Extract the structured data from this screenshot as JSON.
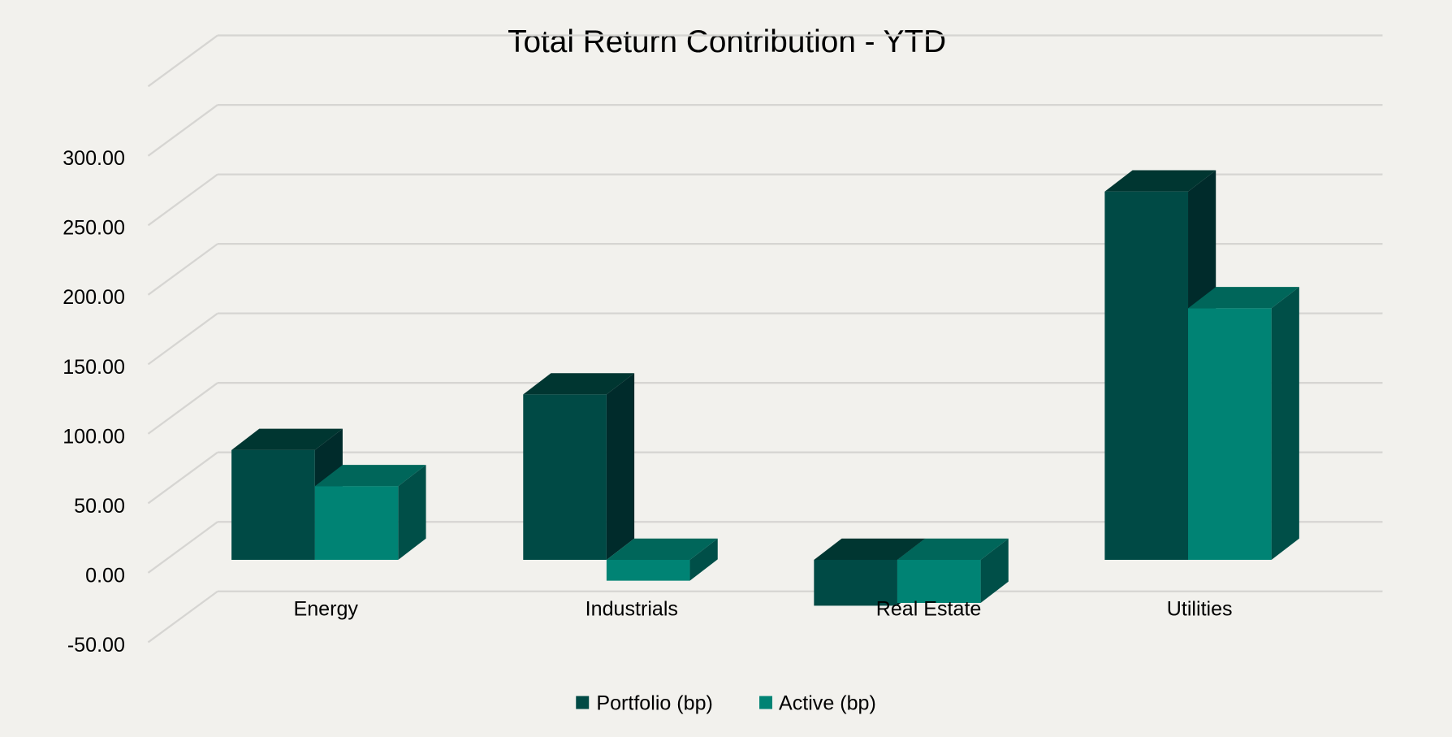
{
  "chart_data": {
    "type": "bar",
    "style": "3d-clustered-column",
    "title": "Total Return Contribution - YTD",
    "categories": [
      "Energy",
      "Industrials",
      "Real Estate",
      "Utilities"
    ],
    "series": [
      {
        "name": "Portfolio (bp)",
        "color": "#004a45",
        "values": [
          79,
          119,
          -33,
          265
        ]
      },
      {
        "name": "Active (bp)",
        "color": "#008374",
        "values": [
          53,
          -15,
          -31,
          181
        ]
      }
    ],
    "y_ticks": [
      "-50.00",
      "0.00",
      "50.00",
      "100.00",
      "150.00",
      "200.00",
      "250.00",
      "300.00"
    ],
    "ylim": [
      -50,
      350
    ],
    "grid": true,
    "legend": "bottom"
  }
}
